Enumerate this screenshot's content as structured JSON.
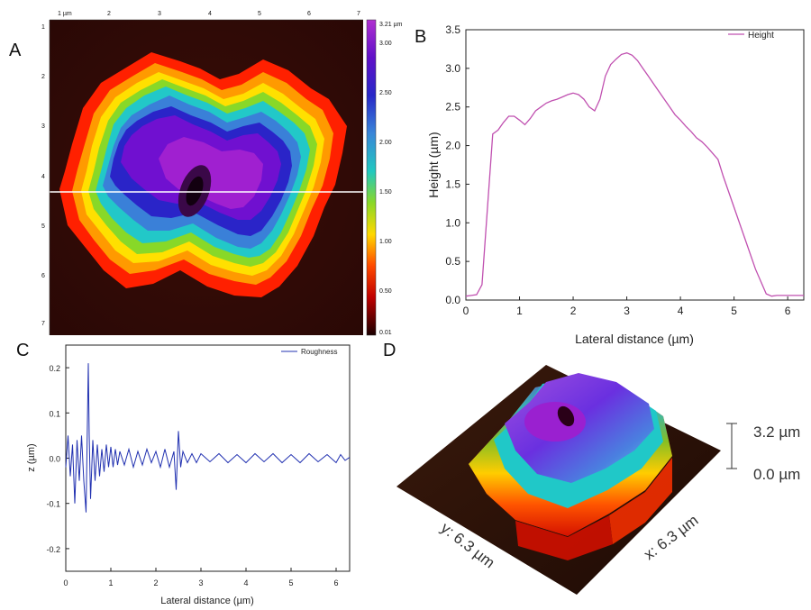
{
  "panels": {
    "a": "A",
    "b": "B",
    "c": "C",
    "d": "D"
  },
  "afm_map": {
    "x_ticks": [
      "1 µm",
      "2",
      "3",
      "4",
      "5",
      "6",
      "7"
    ],
    "y_ticks": [
      "1",
      "2",
      "3",
      "4",
      "5",
      "6",
      "7"
    ],
    "colorbar_ticks": [
      "3.21 µm",
      "3.00",
      "2.50",
      "2.00",
      "1.50",
      "1.00",
      "0.50",
      "0.01"
    ],
    "colors": [
      "#2a0000",
      "#a00000",
      "#ff2000",
      "#ff9a00",
      "#ffee00",
      "#88e020",
      "#20d0d8",
      "#3a7ad8",
      "#2a20c8",
      "#7a10d0",
      "#b020d0"
    ]
  },
  "surface_3d": {
    "z_max": "3.2 µm",
    "z_min": "0.0 µm",
    "x_dim": "x: 6.3 µm",
    "y_dim": "y: 6.3 µm"
  },
  "chart_data": [
    {
      "type": "line",
      "panel": "B",
      "xlabel": "Lateral distance (µm)",
      "ylabel": "Height (µm)",
      "xlim": [
        0,
        6.3
      ],
      "ylim": [
        0,
        3.5
      ],
      "x_ticks": [
        "0",
        "1",
        "2",
        "3",
        "4",
        "5",
        "6"
      ],
      "y_ticks": [
        "0.0",
        "0.5",
        "1.0",
        "1.5",
        "2.0",
        "2.5",
        "3.0",
        "3.5"
      ],
      "series": [
        {
          "name": "Height",
          "color": "#c050b0",
          "x": [
            0,
            0.1,
            0.2,
            0.3,
            0.5,
            0.6,
            0.7,
            0.8,
            0.9,
            1.0,
            1.1,
            1.2,
            1.3,
            1.4,
            1.5,
            1.6,
            1.7,
            1.8,
            1.9,
            2.0,
            2.1,
            2.2,
            2.3,
            2.4,
            2.5,
            2.6,
            2.7,
            2.8,
            2.9,
            3.0,
            3.1,
            3.2,
            3.3,
            3.4,
            3.5,
            3.6,
            3.7,
            3.8,
            3.9,
            4.0,
            4.1,
            4.2,
            4.3,
            4.4,
            4.5,
            4.6,
            4.7,
            4.8,
            5.0,
            5.2,
            5.4,
            5.6,
            5.7,
            5.8,
            6.0,
            6.3
          ],
          "y": [
            0.05,
            0.06,
            0.07,
            0.2,
            2.15,
            2.2,
            2.3,
            2.38,
            2.38,
            2.33,
            2.27,
            2.35,
            2.45,
            2.5,
            2.55,
            2.58,
            2.6,
            2.63,
            2.66,
            2.68,
            2.66,
            2.6,
            2.5,
            2.45,
            2.6,
            2.9,
            3.05,
            3.12,
            3.18,
            3.2,
            3.17,
            3.1,
            3.0,
            2.9,
            2.8,
            2.7,
            2.6,
            2.5,
            2.4,
            2.33,
            2.25,
            2.18,
            2.1,
            2.05,
            1.98,
            1.9,
            1.82,
            1.6,
            1.2,
            0.8,
            0.4,
            0.08,
            0.05,
            0.06,
            0.06,
            0.06
          ]
        }
      ]
    },
    {
      "type": "line",
      "panel": "C",
      "xlabel": "Lateral distance (µm)",
      "ylabel": "z (µm)",
      "xlim": [
        0,
        6.3
      ],
      "ylim": [
        -0.25,
        0.25
      ],
      "x_ticks": [
        "0",
        "1",
        "2",
        "3",
        "4",
        "5",
        "6"
      ],
      "y_ticks": [
        "0.2",
        "0.1",
        "0.0",
        "-0.1",
        "-0.2"
      ],
      "series": [
        {
          "name": "Roughness",
          "color": "#2030b0",
          "x": [
            0,
            0.05,
            0.1,
            0.15,
            0.2,
            0.25,
            0.3,
            0.35,
            0.4,
            0.45,
            0.5,
            0.52,
            0.55,
            0.6,
            0.65,
            0.7,
            0.75,
            0.8,
            0.85,
            0.9,
            0.95,
            1.0,
            1.05,
            1.1,
            1.15,
            1.2,
            1.3,
            1.4,
            1.5,
            1.6,
            1.7,
            1.8,
            1.9,
            2.0,
            2.1,
            2.2,
            2.3,
            2.4,
            2.45,
            2.5,
            2.55,
            2.6,
            2.7,
            2.8,
            2.9,
            3.0,
            3.2,
            3.4,
            3.6,
            3.8,
            4.0,
            4.2,
            4.4,
            4.6,
            4.8,
            5.0,
            5.2,
            5.4,
            5.6,
            5.8,
            6.0,
            6.1,
            6.2,
            6.3
          ],
          "y": [
            -0.02,
            0.05,
            -0.04,
            0.03,
            -0.1,
            0.04,
            -0.05,
            0.05,
            -0.05,
            -0.12,
            0.21,
            0.05,
            -0.09,
            0.04,
            -0.05,
            0.03,
            -0.04,
            0.02,
            -0.03,
            0.03,
            -0.02,
            0.025,
            -0.02,
            0.02,
            -0.015,
            0.015,
            -0.015,
            0.02,
            -0.02,
            0.015,
            -0.015,
            0.02,
            -0.01,
            0.015,
            -0.02,
            0.02,
            -0.02,
            0.015,
            -0.07,
            0.06,
            -0.02,
            0.015,
            -0.01,
            0.01,
            -0.01,
            0.01,
            -0.008,
            0.01,
            -0.01,
            0.008,
            -0.01,
            0.01,
            -0.008,
            0.01,
            -0.01,
            0.008,
            -0.01,
            0.01,
            -0.008,
            0.008,
            -0.01,
            0.008,
            -0.005,
            0.002
          ]
        }
      ]
    }
  ]
}
